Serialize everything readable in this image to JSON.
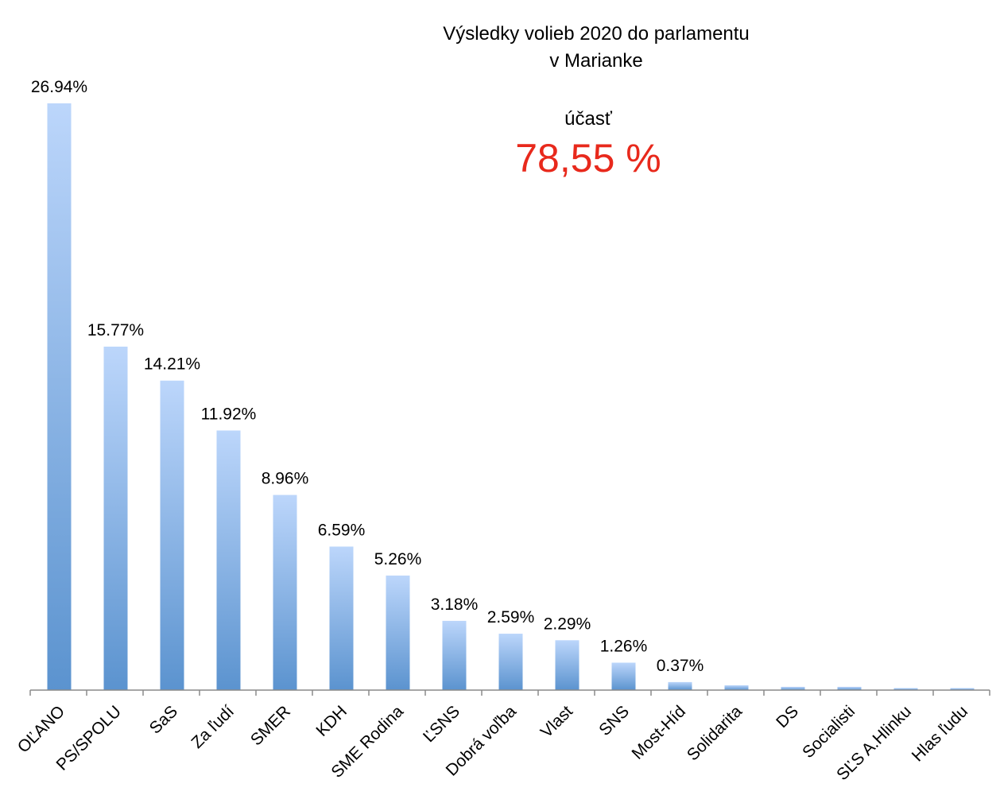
{
  "chart_data": {
    "type": "bar",
    "title": "Výsledky volieb 2020 do parlamentu v Marianke",
    "title_lines": [
      "Výsledky volieb 2020 do parlamentu",
      "v Marianke"
    ],
    "annotation": {
      "label": "účasť",
      "value": "78,55 %",
      "color": "#e8291c"
    },
    "categories": [
      "OĽANO",
      "PS/SPOLU",
      "SaS",
      "Za ľudí",
      "SMER",
      "KDH",
      "SME Rodina",
      "ĽSNS",
      "Dobrá voľba",
      "Vlast",
      "SNS",
      "Most-Híd",
      "Solidarita",
      "DS",
      "Socialisti",
      "SĽS A.Hlinku",
      "Hlas ľudu"
    ],
    "values": [
      26.94,
      15.77,
      14.21,
      11.92,
      8.96,
      6.59,
      5.26,
      3.18,
      2.59,
      2.29,
      1.26,
      0.37,
      0.22,
      0.15,
      0.15,
      0.07,
      0.07
    ],
    "data_labels": [
      "26.94%",
      "15.77%",
      "14.21%",
      "11.92%",
      "8.96%",
      "6.59%",
      "5.26%",
      "3.18%",
      "2.59%",
      "2.29%",
      "1.26%",
      "0.37%",
      "",
      "",
      "",
      "",
      ""
    ],
    "grid": false,
    "legend": "none",
    "bar_color_top": "#bcd6fb",
    "bar_color_bottom": "#5b93cf"
  }
}
